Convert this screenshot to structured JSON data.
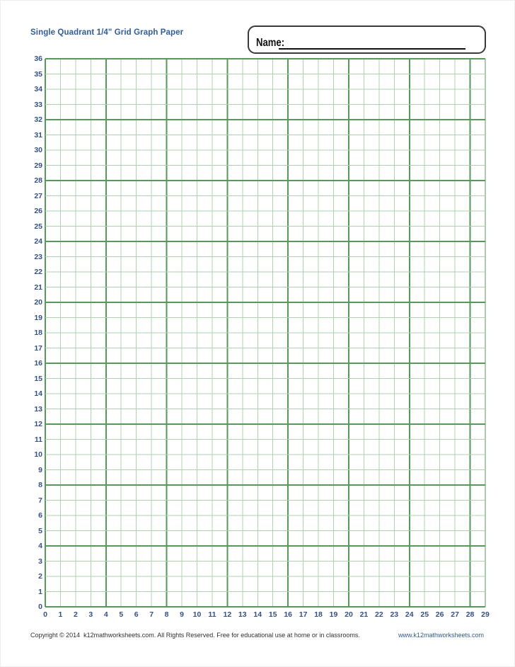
{
  "header": {
    "title": "Single Quadrant 1/4\" Grid Graph Paper",
    "name_label": "Name:"
  },
  "grid": {
    "columns": 29,
    "rows": 36,
    "major_every": 4,
    "x_labels": [
      "0",
      "1",
      "2",
      "3",
      "4",
      "5",
      "6",
      "7",
      "8",
      "9",
      "10",
      "11",
      "12",
      "13",
      "14",
      "15",
      "16",
      "17",
      "18",
      "19",
      "20",
      "21",
      "22",
      "23",
      "24",
      "25",
      "26",
      "27",
      "28",
      "29"
    ],
    "y_labels": [
      "36",
      "35",
      "34",
      "33",
      "32",
      "31",
      "30",
      "29",
      "28",
      "27",
      "26",
      "25",
      "24",
      "23",
      "22",
      "21",
      "20",
      "19",
      "18",
      "17",
      "16",
      "15",
      "14",
      "13",
      "12",
      "11",
      "10",
      "9",
      "8",
      "7",
      "6",
      "5",
      "4",
      "3",
      "2",
      "1",
      "0"
    ],
    "colors": {
      "minor_line": "#aed2ae",
      "major_line": "#539b56",
      "edge_line": "#539b56",
      "label_text": "#30508f"
    }
  },
  "footer": {
    "copyright": "Copyright © 2014  k12mathworksheets.com. All Rights Reserved. Free for educational use at home or in classrooms.",
    "website": "www.k12mathworksheets.com"
  },
  "colors": {
    "title_text": "#2d5ca6",
    "name_box_border": "#3a3a3a",
    "footer_text": "#2f2f2f",
    "website_text": "#2b5aa7"
  }
}
